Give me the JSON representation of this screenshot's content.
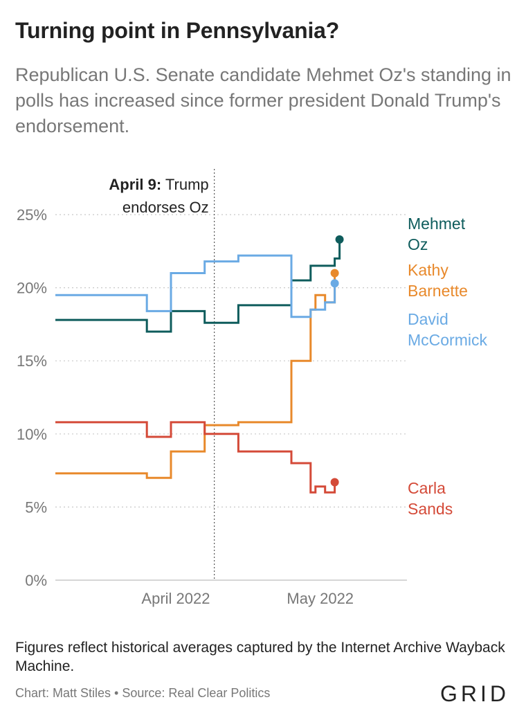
{
  "title": "Turning point in Pennsylvania?",
  "subtitle": "Republican U.S. Senate candidate Mehmet Oz's standing in polls has increased since former president Donald Trump's endorsement.",
  "note": "Figures reflect historical averages captured by the Internet Archive Wayback Machine.",
  "credit": "Chart: Matt Stiles • Source: Real Clear Politics",
  "logo": "GRID",
  "chart_data": {
    "type": "line",
    "step": true,
    "y_ticks": [
      "0%",
      "5%",
      "10%",
      "15%",
      "20%",
      "25%"
    ],
    "ylim": [
      0,
      25
    ],
    "xlim": [
      "2022-03-07",
      "2022-05-19"
    ],
    "x_ticks": [
      {
        "date": "2022-04-01",
        "label": "April 2022"
      },
      {
        "date": "2022-05-01",
        "label": "May 2022"
      }
    ],
    "grid": true,
    "annotation": {
      "date": "2022-04-09",
      "bold": "April 9:",
      "rest_line1": " Trump",
      "line2": "endorses Oz"
    },
    "series": [
      {
        "name_lines": [
          "Mehmet",
          "Oz"
        ],
        "color": "#0e5c5c",
        "points": [
          [
            "2022-03-07",
            17.8
          ],
          [
            "2022-03-26",
            17.8
          ],
          [
            "2022-03-26",
            17.0
          ],
          [
            "2022-03-31",
            17.0
          ],
          [
            "2022-03-31",
            18.4
          ],
          [
            "2022-04-07",
            18.4
          ],
          [
            "2022-04-07",
            17.6
          ],
          [
            "2022-04-14",
            17.6
          ],
          [
            "2022-04-14",
            18.8
          ],
          [
            "2022-04-25",
            18.8
          ],
          [
            "2022-04-25",
            20.5
          ],
          [
            "2022-04-29",
            20.5
          ],
          [
            "2022-04-29",
            21.5
          ],
          [
            "2022-05-04",
            21.5
          ],
          [
            "2022-05-04",
            22.0
          ],
          [
            "2022-05-05",
            22.0
          ],
          [
            "2022-05-05",
            23.3
          ]
        ]
      },
      {
        "name_lines": [
          "Kathy",
          "Barnette"
        ],
        "color": "#e8892b",
        "points": [
          [
            "2022-03-07",
            7.3
          ],
          [
            "2022-03-26",
            7.3
          ],
          [
            "2022-03-26",
            7.0
          ],
          [
            "2022-03-31",
            7.0
          ],
          [
            "2022-03-31",
            8.8
          ],
          [
            "2022-04-07",
            8.8
          ],
          [
            "2022-04-07",
            10.6
          ],
          [
            "2022-04-14",
            10.6
          ],
          [
            "2022-04-14",
            10.8
          ],
          [
            "2022-04-25",
            10.8
          ],
          [
            "2022-04-25",
            15.0
          ],
          [
            "2022-04-29",
            15.0
          ],
          [
            "2022-04-29",
            18.5
          ],
          [
            "2022-04-30",
            18.5
          ],
          [
            "2022-04-30",
            19.5
          ],
          [
            "2022-05-02",
            19.5
          ],
          [
            "2022-05-02",
            19.0
          ],
          [
            "2022-05-04",
            19.0
          ],
          [
            "2022-05-04",
            21.0
          ]
        ]
      },
      {
        "name_lines": [
          "David",
          "McCormick"
        ],
        "color": "#6aaae4",
        "points": [
          [
            "2022-03-07",
            19.5
          ],
          [
            "2022-03-26",
            19.5
          ],
          [
            "2022-03-26",
            18.4
          ],
          [
            "2022-03-31",
            18.4
          ],
          [
            "2022-03-31",
            21.0
          ],
          [
            "2022-04-07",
            21.0
          ],
          [
            "2022-04-07",
            21.8
          ],
          [
            "2022-04-14",
            21.8
          ],
          [
            "2022-04-14",
            22.2
          ],
          [
            "2022-04-25",
            22.2
          ],
          [
            "2022-04-25",
            18.0
          ],
          [
            "2022-04-29",
            18.0
          ],
          [
            "2022-04-29",
            18.5
          ],
          [
            "2022-05-02",
            18.5
          ],
          [
            "2022-05-02",
            19.0
          ],
          [
            "2022-05-04",
            19.0
          ],
          [
            "2022-05-04",
            20.3
          ]
        ]
      },
      {
        "name_lines": [
          "Carla",
          "Sands"
        ],
        "color": "#d44a38",
        "points": [
          [
            "2022-03-07",
            10.8
          ],
          [
            "2022-03-26",
            10.8
          ],
          [
            "2022-03-26",
            9.8
          ],
          [
            "2022-03-31",
            9.8
          ],
          [
            "2022-03-31",
            10.8
          ],
          [
            "2022-04-07",
            10.8
          ],
          [
            "2022-04-07",
            10.0
          ],
          [
            "2022-04-14",
            10.0
          ],
          [
            "2022-04-14",
            8.8
          ],
          [
            "2022-04-25",
            8.8
          ],
          [
            "2022-04-25",
            8.0
          ],
          [
            "2022-04-29",
            8.0
          ],
          [
            "2022-04-29",
            6.0
          ],
          [
            "2022-04-30",
            6.0
          ],
          [
            "2022-04-30",
            6.4
          ],
          [
            "2022-05-02",
            6.4
          ],
          [
            "2022-05-02",
            6.0
          ],
          [
            "2022-05-04",
            6.0
          ],
          [
            "2022-05-04",
            6.7
          ]
        ]
      }
    ]
  }
}
